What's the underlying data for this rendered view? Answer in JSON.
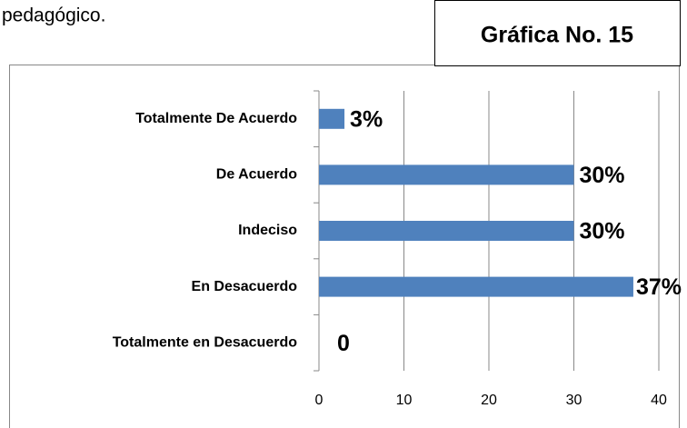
{
  "page_text": "pedagógico.",
  "chart_data": {
    "type": "barh",
    "caption": "Gráfica No. 15",
    "categories": [
      "Totalmente De Acuerdo",
      "De Acuerdo",
      "Indeciso",
      "En Desacuerdo",
      "Totalmente en Desacuerdo"
    ],
    "values": [
      3,
      30,
      30,
      37,
      0
    ],
    "value_labels": [
      "3%",
      "30%",
      "30%",
      "37%",
      "0"
    ],
    "color": "#4f81bd",
    "xlim": [
      0,
      40
    ],
    "xticks": [
      0,
      10,
      20,
      30,
      40
    ],
    "grid": true
  }
}
